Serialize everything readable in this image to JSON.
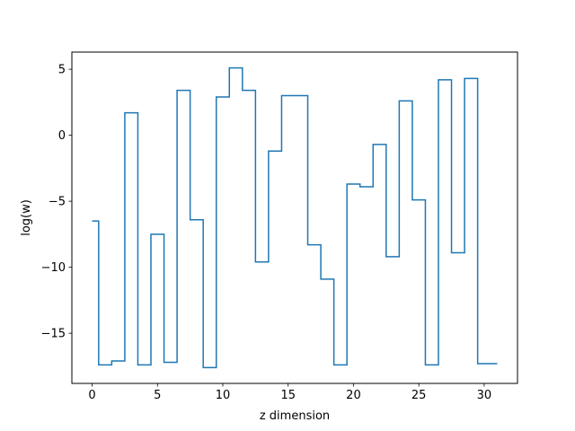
{
  "chart_data": {
    "type": "line",
    "drawstyle": "steps-mid",
    "xlabel": "z dimension",
    "ylabel": "log(w)",
    "xlim": [
      -1.55,
      32.55
    ],
    "ylim": [
      -18.8,
      6.3
    ],
    "xticks": [
      0,
      5,
      10,
      15,
      20,
      25,
      30
    ],
    "yticks": [
      -15,
      -10,
      -5,
      0,
      5
    ],
    "grid": false,
    "series": [
      {
        "color": "#1f77b4",
        "x": [
          0,
          1,
          2,
          3,
          4,
          5,
          6,
          7,
          8,
          9,
          10,
          11,
          12,
          13,
          14,
          15,
          16,
          17,
          18,
          19,
          20,
          21,
          22,
          23,
          24,
          25,
          26,
          27,
          28,
          29,
          30,
          31
        ],
        "y": [
          -6.5,
          -17.4,
          -17.1,
          1.7,
          -17.4,
          -7.5,
          -17.2,
          3.4,
          -6.4,
          -17.6,
          2.9,
          5.1,
          3.4,
          -9.6,
          -1.2,
          3.0,
          3.0,
          -8.3,
          -10.9,
          -17.4,
          -3.7,
          -3.9,
          -0.7,
          -9.2,
          2.6,
          -4.9,
          -17.4,
          4.2,
          -8.9,
          4.3,
          -17.3,
          -17.3
        ]
      }
    ]
  }
}
